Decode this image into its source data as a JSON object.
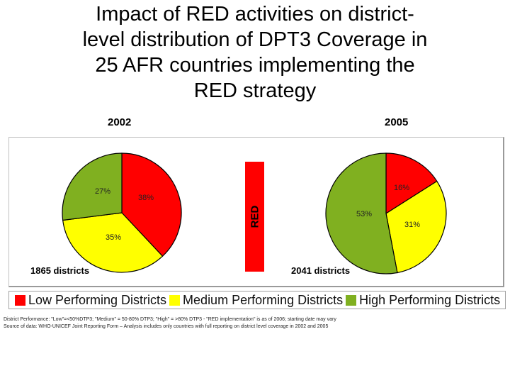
{
  "title": "Impact of RED activities on district-level distribution of DPT3 Coverage in 25 AFR countries implementing the RED strategy",
  "title_lines": [
    "Impact of RED activities on district-",
    "level distribution of DPT3 Coverage in",
    "25 AFR countries implementing the",
    "RED strategy"
  ],
  "divider_label": "RED",
  "colors": {
    "low": "#ff0000",
    "medium": "#ffff00",
    "high": "#80b020",
    "divider": "#ff0000"
  },
  "chart_data": [
    {
      "type": "pie",
      "title": "2002",
      "caption": "1865 districts",
      "categories": [
        "Low Performing Districts",
        "Medium Performing Districts",
        "High Performing Districts"
      ],
      "values": [
        38,
        35,
        27
      ],
      "labels": [
        "38%",
        "35%",
        "27%"
      ]
    },
    {
      "type": "pie",
      "title": "2005",
      "caption": "2041 districts",
      "categories": [
        "Low Performing Districts",
        "Medium Performing Districts",
        "High Performing Districts"
      ],
      "values": [
        16,
        31,
        53
      ],
      "labels": [
        "16%",
        "31%",
        "53%"
      ]
    }
  ],
  "legend": [
    {
      "label": "Low Performing Districts",
      "key": "low"
    },
    {
      "label": "Medium Performing Districts",
      "key": "medium"
    },
    {
      "label": "High Performing Districts",
      "key": "high"
    }
  ],
  "footnotes": [
    "District Performance: \"Low\"=<50%DTP3; \"Medium\" = 50-80% DTP3; \"High\" = >80% DTP3 - \"RED implementation\" is as of 2006; starting date may vary",
    "Source of data: WHO-UNICEF Joint Reporting Form – Analysis includes only countries with full reporting on district level coverage in 2002 and 2005"
  ]
}
